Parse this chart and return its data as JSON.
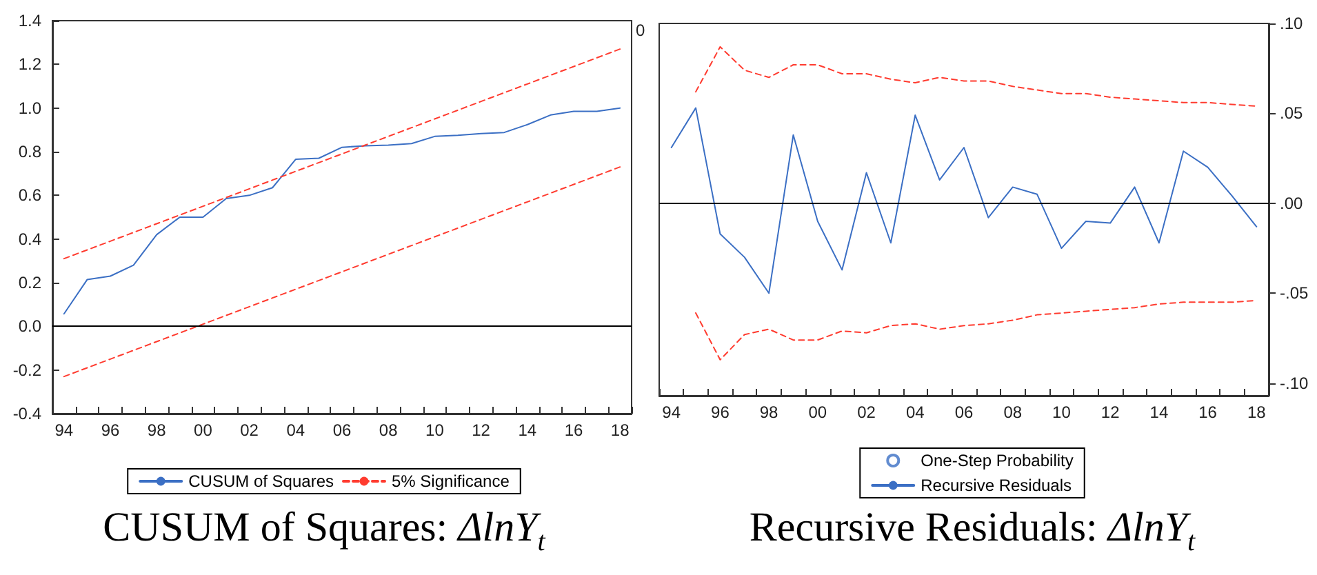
{
  "chart_data": [
    {
      "type": "line",
      "title": "CUSUM of Squares: ΔlnY$_{t}$",
      "categories": [
        "94",
        null,
        "96",
        null,
        "98",
        null,
        "00",
        null,
        "02",
        null,
        "04",
        null,
        "06",
        null,
        "08",
        null,
        "10",
        null,
        "12",
        null,
        "14",
        null,
        "16",
        null,
        "18"
      ],
      "ylim": [
        -0.4,
        1.4
      ],
      "yticks": [
        {
          "value": -0.4,
          "label": "-0.4"
        },
        {
          "value": -0.2,
          "label": "-0.2"
        },
        {
          "value": 0,
          "label": "0.0"
        },
        {
          "value": 0.2,
          "label": "0.2"
        },
        {
          "value": 0.4,
          "label": "0.4"
        },
        {
          "value": 0.6,
          "label": "0.6"
        },
        {
          "value": 0.8,
          "label": "0.8"
        },
        {
          "value": 1.0,
          "label": "1.0"
        },
        {
          "value": 1.2,
          "label": "1.2"
        },
        {
          "value": 1.4,
          "label": "1.4"
        }
      ],
      "legend": "bottom",
      "marker": "none",
      "ref_lines": [
        {
          "axis": "y",
          "value": 0,
          "color": "#000000",
          "line_style": "solid"
        }
      ],
      "series": [
        {
          "name": "CUSUM of Squares",
          "color": "#3b6fc4",
          "line_style": "solid",
          "values": [
            0.057,
            0.214,
            0.23,
            0.28,
            0.42,
            0.5,
            0.5,
            0.585,
            0.6,
            0.635,
            0.765,
            0.77,
            0.82,
            0.827,
            0.83,
            0.837,
            0.87,
            0.875,
            0.883,
            0.888,
            0.924,
            0.968,
            0.985,
            0.985,
            1.0
          ]
        },
        {
          "name": "5% Significance",
          "color": "#ff3b2f",
          "line_style": "dashed",
          "values": [
            0.31,
            0.35,
            0.39,
            0.43,
            0.47,
            0.51,
            0.55,
            0.59,
            0.63,
            0.67,
            0.71,
            0.75,
            0.79,
            0.83,
            0.87,
            0.91,
            0.95,
            0.99,
            1.03,
            1.07,
            1.11,
            1.15,
            1.19,
            1.23,
            1.27
          ]
        },
        {
          "color": "#ff3b2f",
          "line_style": "dashed",
          "values": [
            -0.23,
            -0.19,
            -0.15,
            -0.11,
            -0.07,
            -0.03,
            0.01,
            0.05,
            0.09,
            0.13,
            0.17,
            0.21,
            0.25,
            0.29,
            0.33,
            0.37,
            0.41,
            0.45,
            0.49,
            0.53,
            0.57,
            0.61,
            0.65,
            0.69,
            0.73
          ]
        }
      ]
    },
    {
      "type": "line",
      "title": "Recursive Residuals: ΔlnY$_{t}$",
      "categories": [
        "94",
        null,
        "96",
        null,
        "98",
        null,
        "00",
        null,
        "02",
        null,
        "04",
        null,
        "06",
        null,
        "08",
        null,
        "10",
        null,
        "12",
        null,
        "14",
        null,
        "16",
        null,
        "18"
      ],
      "ylim": [
        -0.107,
        0.1
      ],
      "yticks": [
        {
          "value": -0.1,
          "label": "-.10"
        },
        {
          "value": -0.05,
          "label": "-.05"
        },
        {
          "value": 0,
          "label": ".00"
        },
        {
          "value": 0.05,
          "label": ".05"
        },
        {
          "value": 0.1,
          "label": ".10"
        }
      ],
      "legend": "bottom",
      "marker": "none",
      "annotations": [
        "0"
      ],
      "ref_lines": [
        {
          "axis": "y",
          "value": 0,
          "color": "#000000",
          "line_style": "solid"
        }
      ],
      "series": [
        {
          "name": "One-Step Probability",
          "type": "scatter",
          "marker": "circle",
          "color": "#3b6fc4",
          "values": [
            null,
            null,
            null,
            null,
            null,
            null,
            null,
            null,
            null,
            null,
            null,
            null,
            null,
            null,
            null,
            null,
            null,
            null,
            null,
            null,
            null,
            null,
            null,
            null,
            null
          ]
        },
        {
          "name": "Recursive Residuals",
          "color": "#3b6fc4",
          "line_style": "solid",
          "values": [
            0.031,
            0.053,
            -0.017,
            -0.03,
            -0.05,
            0.038,
            -0.01,
            -0.037,
            0.017,
            -0.022,
            0.049,
            0.013,
            0.031,
            -0.008,
            0.009,
            0.005,
            -0.025,
            -0.01,
            -0.011,
            0.009,
            -0.022,
            0.029,
            0.02,
            0.004,
            -0.013
          ]
        },
        {
          "color": "#ff3b2f",
          "line_style": "dashed",
          "values": [
            null,
            0.062,
            0.087,
            0.074,
            0.07,
            0.077,
            0.077,
            0.072,
            0.072,
            0.069,
            0.067,
            0.07,
            0.068,
            0.068,
            0.065,
            0.063,
            0.061,
            0.061,
            0.059,
            0.058,
            0.057,
            0.056,
            0.056,
            0.055,
            0.054
          ]
        },
        {
          "color": "#ff3b2f",
          "line_style": "dashed",
          "values": [
            null,
            -0.061,
            -0.087,
            -0.073,
            -0.07,
            -0.076,
            -0.076,
            -0.071,
            -0.072,
            -0.068,
            -0.067,
            -0.07,
            -0.068,
            -0.067,
            -0.065,
            -0.062,
            -0.061,
            -0.06,
            -0.059,
            -0.058,
            -0.056,
            -0.055,
            -0.055,
            -0.055,
            -0.054
          ]
        }
      ]
    }
  ]
}
